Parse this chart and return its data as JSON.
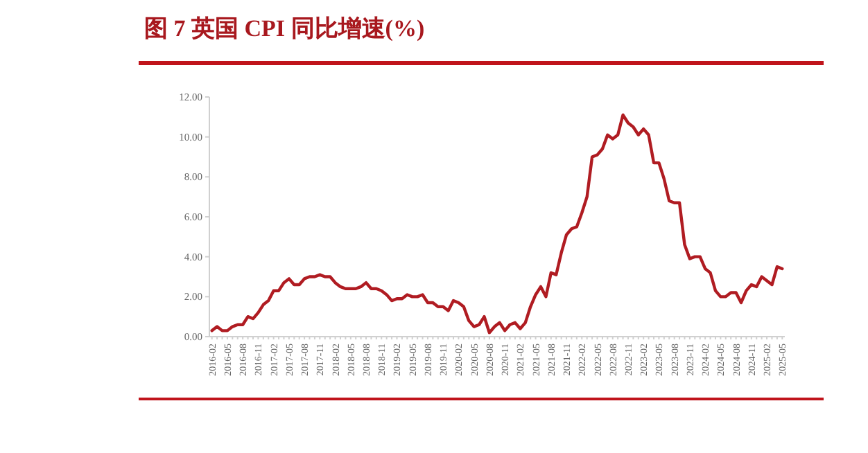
{
  "chart_data": {
    "type": "line",
    "title": "图 7  英国 CPI 同比增速(%)",
    "color": "#b01c22",
    "grid": false,
    "marker": "none",
    "line_style": "solid",
    "categories": [
      "2016-02",
      null,
      null,
      "2016-05",
      null,
      null,
      "2016-08",
      null,
      null,
      "2016-11",
      null,
      null,
      "2017-02",
      null,
      null,
      "2017-05",
      null,
      null,
      "2017-08",
      null,
      null,
      "2017-11",
      null,
      null,
      "2018-02",
      null,
      null,
      "2018-05",
      null,
      null,
      "2018-08",
      null,
      null,
      "2018-11",
      null,
      null,
      "2019-02",
      null,
      null,
      "2019-05",
      null,
      null,
      "2019-08",
      null,
      null,
      "2019-11",
      null,
      null,
      "2020-02",
      null,
      null,
      "2020-05",
      null,
      null,
      "2020-08",
      null,
      null,
      "2020-11",
      null,
      null,
      "2021-02",
      null,
      null,
      "2021-05",
      null,
      null,
      "2021-08",
      null,
      null,
      "2021-11",
      null,
      null,
      "2022-02",
      null,
      null,
      "2022-05",
      null,
      null,
      "2022-08",
      null,
      null,
      "2022-11",
      null,
      null,
      "2023-02",
      null,
      null,
      "2023-05",
      null,
      null,
      "2023-08",
      null,
      null,
      "2023-11",
      null,
      null,
      "2024-02",
      null,
      null,
      "2024-05",
      null,
      null,
      "2024-08",
      null,
      null,
      "2024-11",
      null,
      null,
      "2025-02",
      null,
      null,
      "2025-05"
    ],
    "values": [
      0.3,
      0.5,
      0.3,
      0.3,
      0.5,
      0.6,
      0.6,
      1.0,
      0.9,
      1.2,
      1.6,
      1.8,
      2.3,
      2.3,
      2.7,
      2.9,
      2.6,
      2.6,
      2.9,
      3.0,
      3.0,
      3.1,
      3.0,
      3.0,
      2.7,
      2.5,
      2.4,
      2.4,
      2.4,
      2.5,
      2.7,
      2.4,
      2.4,
      2.3,
      2.1,
      1.8,
      1.9,
      1.9,
      2.1,
      2.0,
      2.0,
      2.1,
      1.7,
      1.7,
      1.5,
      1.5,
      1.3,
      1.8,
      1.7,
      1.5,
      0.8,
      0.5,
      0.6,
      1.0,
      0.2,
      0.5,
      0.7,
      0.3,
      0.6,
      0.7,
      0.4,
      0.7,
      1.5,
      2.1,
      2.5,
      2.0,
      3.2,
      3.1,
      4.2,
      5.1,
      5.4,
      5.5,
      6.2,
      7.0,
      9.0,
      9.1,
      9.4,
      10.1,
      9.9,
      10.1,
      11.1,
      10.7,
      10.5,
      10.1,
      10.4,
      10.1,
      8.7,
      8.7,
      7.9,
      6.8,
      6.7,
      6.7,
      4.6,
      3.9,
      4.0,
      4.0,
      3.4,
      3.2,
      2.3,
      2.0,
      2.0,
      2.2,
      2.2,
      1.7,
      2.3,
      2.6,
      2.5,
      3.0,
      2.8,
      2.6,
      3.5,
      3.4
    ],
    "ylim": [
      0,
      12
    ],
    "yticks": [
      {
        "value": 0,
        "label": "0.00"
      },
      {
        "value": 2,
        "label": "2.00"
      },
      {
        "value": 4,
        "label": "4.00"
      },
      {
        "value": 6,
        "label": "6.00"
      },
      {
        "value": 8,
        "label": "8.00"
      },
      {
        "value": 10,
        "label": "10.00"
      },
      {
        "value": 12,
        "label": "12.00"
      }
    ]
  }
}
